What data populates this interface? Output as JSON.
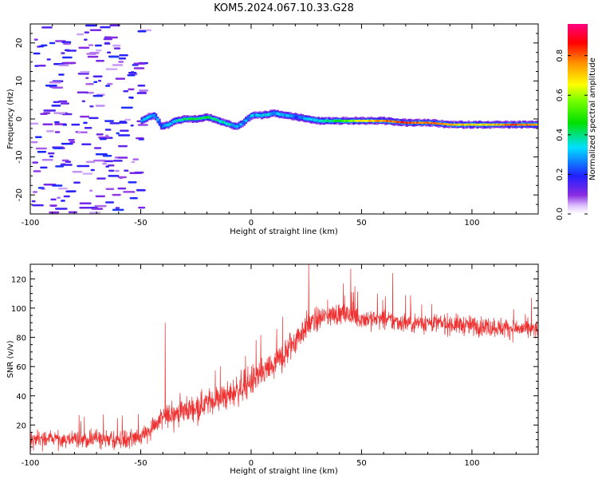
{
  "title": "KOM5.2024.067.10.33.G28",
  "chart_data": [
    {
      "type": "heatmap",
      "xlabel": "Height of straight line (km)",
      "ylabel": "Frequency (Hz)",
      "xlim": [
        -100,
        130
      ],
      "ylim": [
        -25,
        25
      ],
      "x_ticks": [
        -100,
        -50,
        0,
        50,
        100
      ],
      "y_ticks": [
        -20,
        -10,
        0,
        10,
        20
      ],
      "colorbar": {
        "label": "Normalized spectral amplitude",
        "range": [
          0,
          0.96
        ],
        "ticks": [
          0.0,
          0.2,
          0.4,
          0.6,
          0.8
        ],
        "colormap": "rainbow (white → violet → blue → cyan → green → yellow → orange → red → magenta)"
      },
      "noise_region": {
        "x_range": [
          -100,
          -50
        ],
        "y_range": [
          -25,
          25
        ],
        "amplitude": "low (0.05–0.25)"
      },
      "signal_trace": {
        "x": [
          -50,
          -47,
          -44,
          -41,
          -38,
          -35,
          -30,
          -25,
          -20,
          -15,
          -10,
          -7,
          -4,
          0,
          5,
          10,
          15,
          20,
          25,
          30,
          40,
          50,
          60,
          70,
          80,
          90,
          100,
          110,
          120,
          130
        ],
        "frequency": [
          -0.5,
          0.5,
          1.0,
          -2.0,
          -1.5,
          -0.5,
          0.0,
          0.0,
          0.5,
          -0.5,
          -1.5,
          -2.0,
          -1.0,
          1.0,
          1.0,
          1.5,
          1.0,
          0.5,
          0.0,
          -0.5,
          -0.5,
          -0.5,
          -0.5,
          -1.0,
          -1.0,
          -1.5,
          -1.5,
          -1.5,
          -1.5,
          -1.5
        ],
        "amplitude": [
          0.25,
          0.35,
          0.3,
          0.25,
          0.3,
          0.35,
          0.4,
          0.45,
          0.45,
          0.4,
          0.35,
          0.3,
          0.3,
          0.3,
          0.35,
          0.3,
          0.3,
          0.25,
          0.3,
          0.35,
          0.5,
          0.7,
          0.8,
          0.85,
          0.8,
          0.75,
          0.7,
          0.75,
          0.85,
          0.8
        ]
      }
    },
    {
      "type": "line",
      "xlabel": "Height of straight line (km)",
      "ylabel": "SNR (v/v)",
      "xlim": [
        -100,
        130
      ],
      "ylim": [
        0,
        130
      ],
      "x_ticks": [
        -100,
        -50,
        0,
        50,
        100
      ],
      "y_ticks": [
        20,
        40,
        60,
        80,
        100,
        120
      ],
      "color": "#ee3030",
      "series": [
        {
          "trend_x": [
            -100,
            -80,
            -60,
            -55,
            -50,
            -45,
            -40,
            -35,
            -30,
            -25,
            -20,
            -15,
            -10,
            -5,
            0,
            5,
            10,
            15,
            20,
            25,
            30,
            35,
            40,
            45,
            50,
            60,
            70,
            80,
            90,
            100,
            110,
            120,
            130
          ],
          "trend_y": [
            10,
            10,
            10,
            10,
            12,
            18,
            25,
            28,
            30,
            32,
            35,
            38,
            40,
            45,
            50,
            55,
            60,
            68,
            78,
            88,
            92,
            95,
            96,
            95,
            93,
            92,
            90,
            90,
            89,
            88,
            87,
            86,
            85
          ],
          "spread": [
            8,
            8,
            8,
            8,
            9,
            10,
            10,
            11,
            12,
            12,
            12,
            12,
            13,
            14,
            14,
            14,
            15,
            15,
            14,
            12,
            11,
            10,
            10,
            10,
            10,
            9,
            9,
            9,
            9,
            9,
            9,
            9,
            9
          ],
          "spikes": [
            {
              "x": -39,
              "y": 90
            },
            {
              "x": 26,
              "y": 130
            },
            {
              "x": 45,
              "y": 127
            },
            {
              "x": 64,
              "y": 124
            }
          ]
        }
      ]
    }
  ]
}
